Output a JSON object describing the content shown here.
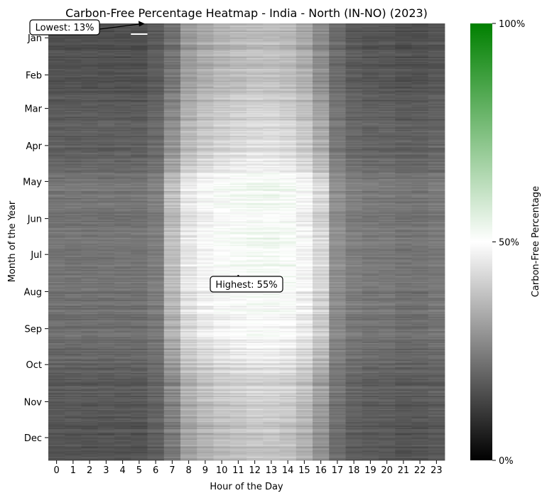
{
  "chart_data": {
    "type": "heatmap",
    "title": "Carbon-Free Percentage Heatmap - India - North (IN-NO) (2023)",
    "xlabel": "Hour of the Day",
    "ylabel": "Month of the Year",
    "x_ticks": [
      "0",
      "1",
      "2",
      "3",
      "4",
      "5",
      "6",
      "7",
      "8",
      "9",
      "10",
      "11",
      "12",
      "13",
      "14",
      "15",
      "16",
      "17",
      "18",
      "19",
      "20",
      "21",
      "22",
      "23"
    ],
    "y_ticks": [
      "Jan",
      "Feb",
      "Mar",
      "Apr",
      "May",
      "Jun",
      "Jul",
      "Aug",
      "Sep",
      "Oct",
      "Nov",
      "Dec"
    ],
    "colorbar": {
      "label": "Carbon-Free Percentage",
      "ticks": [
        "0%",
        "50%",
        "100%"
      ],
      "range": [
        0,
        100
      ],
      "colors": [
        "#000000",
        "#ffffff",
        "#008000"
      ]
    },
    "hourly_profile_percent": [
      18,
      18,
      18,
      18,
      18,
      18,
      20,
      27,
      35,
      38,
      40,
      41,
      42,
      42,
      41,
      38,
      32,
      23,
      20,
      19,
      19,
      18,
      18,
      19
    ],
    "monthly_profile_percent": [
      {
        "month": "Jan",
        "offset": -4
      },
      {
        "month": "Feb",
        "offset": -3
      },
      {
        "month": "Mar",
        "offset": -1
      },
      {
        "month": "Apr",
        "offset": 2
      },
      {
        "month": "May",
        "offset": 8
      },
      {
        "month": "Jun",
        "offset": 8
      },
      {
        "month": "Jul",
        "offset": 9
      },
      {
        "month": "Aug",
        "offset": 7
      },
      {
        "month": "Sep",
        "offset": 6
      },
      {
        "month": "Oct",
        "offset": 1
      },
      {
        "month": "Nov",
        "offset": -1
      },
      {
        "month": "Dec",
        "offset": -3
      }
    ],
    "annotations": [
      {
        "label": "Lowest: 13%",
        "value": 13,
        "month": "Jan",
        "hour": 5
      },
      {
        "label": "Highest: 55%",
        "value": 55,
        "month": "Jul",
        "hour": 11
      }
    ]
  }
}
